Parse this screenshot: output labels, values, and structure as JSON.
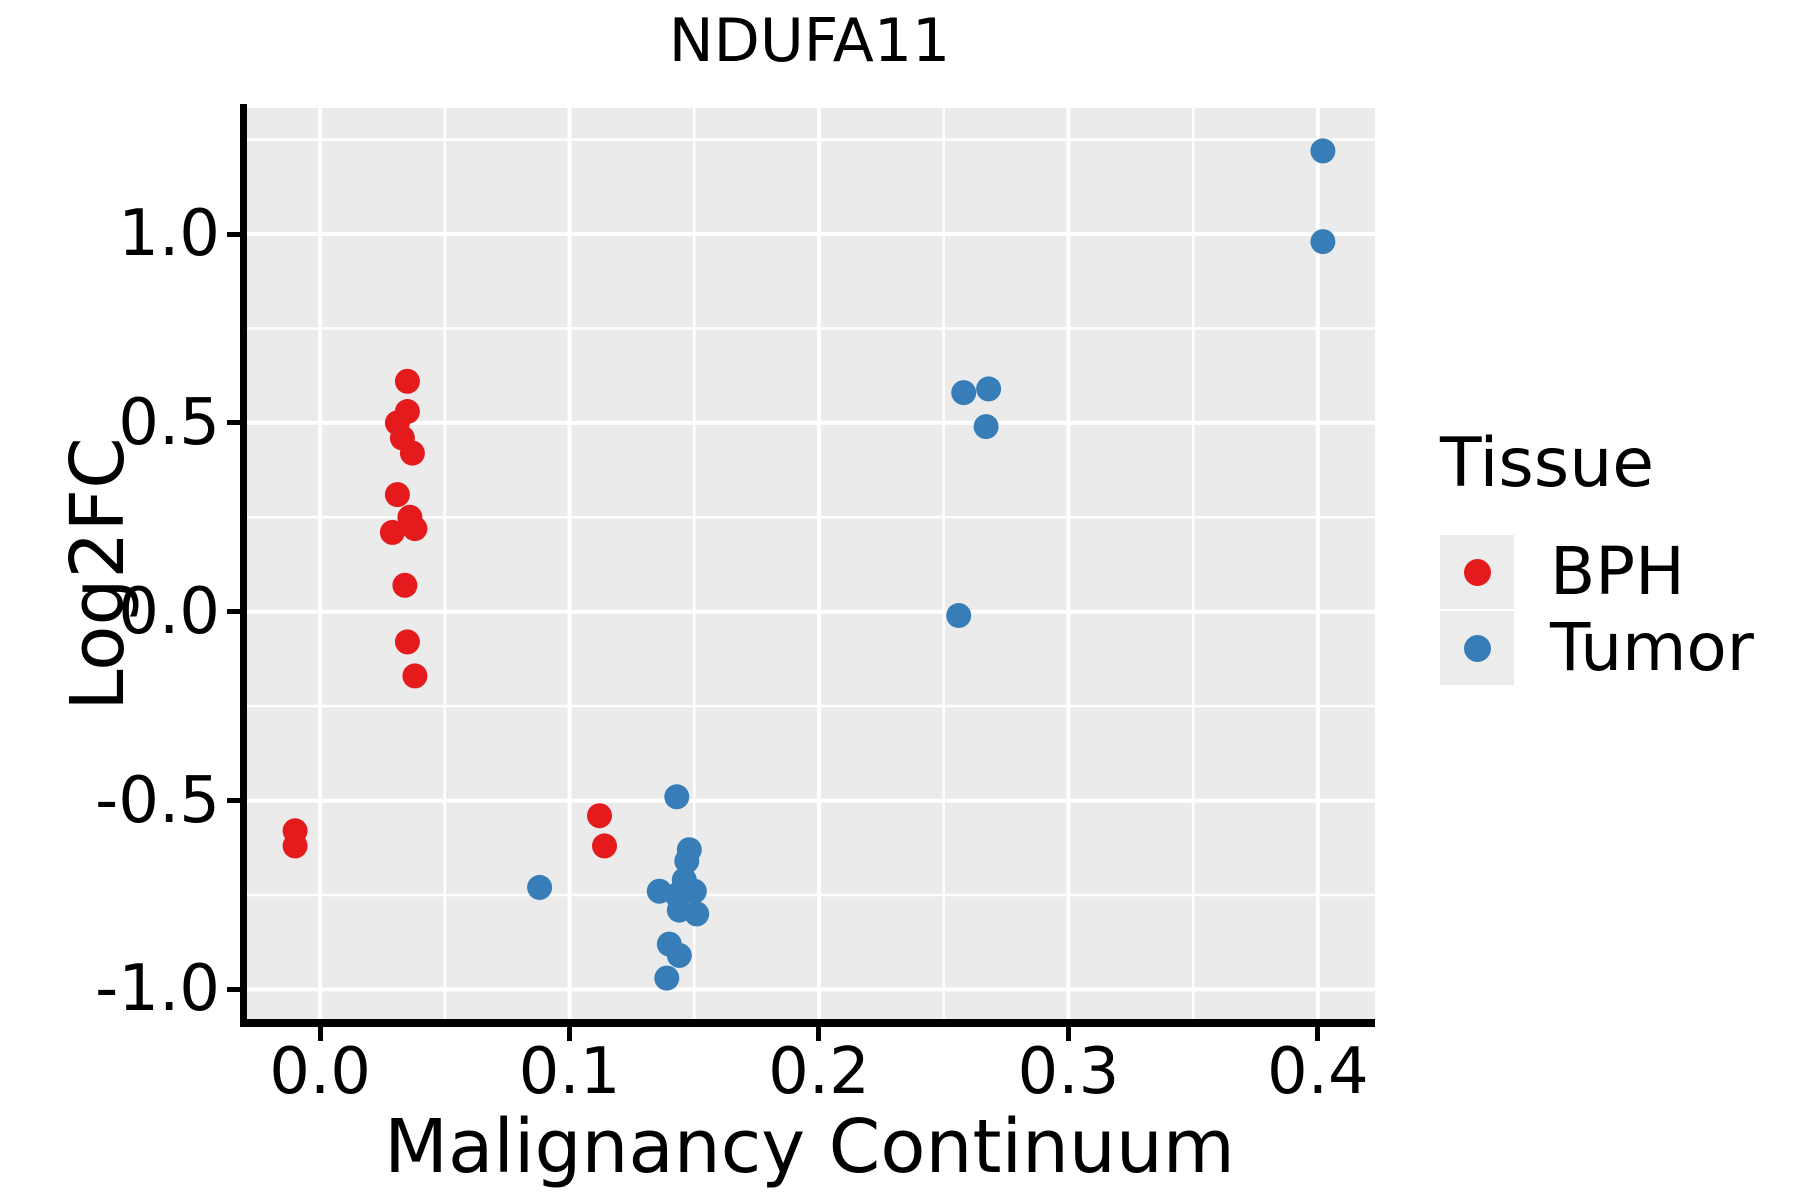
{
  "chart_data": {
    "type": "scatter",
    "title": "NDUFA11",
    "xlabel": "Malignancy Continuum",
    "ylabel": "Log2FC",
    "xlim": [
      -0.0305,
      0.4229
    ],
    "ylim": [
      -1.0889,
      1.3336
    ],
    "x_ticks": {
      "values": [
        0.0,
        0.1,
        0.2,
        0.3,
        0.4
      ],
      "labels": [
        "0.0",
        "0.1",
        "0.2",
        "0.3",
        "0.4"
      ]
    },
    "y_ticks": {
      "values": [
        1.0,
        0.5,
        0.0,
        -0.5,
        -1.0
      ],
      "labels": [
        "1.0",
        "0.5",
        "0.0",
        "-0.5",
        "-1.0"
      ]
    },
    "x_minor": [
      0.05,
      0.15,
      0.25,
      0.35
    ],
    "y_minor": [
      1.25,
      0.75,
      0.25,
      -0.25,
      -0.75
    ],
    "grid": "major and minor white gridlines on gray panel",
    "panel_bg": "#EBEBEB",
    "grid_color": "#FFFFFF",
    "marker_radius_px": 12.5,
    "legend": {
      "title": "Tissue",
      "position": "right",
      "items": [
        {
          "label": "BPH",
          "color": "#E41A1C"
        },
        {
          "label": "Tumor",
          "color": "#377EB8"
        }
      ]
    },
    "series": [
      {
        "name": "BPH",
        "color": "#E41A1C",
        "points": [
          [
            -0.01,
            -0.58
          ],
          [
            -0.01,
            -0.62
          ],
          [
            0.035,
            0.61
          ],
          [
            0.035,
            0.53
          ],
          [
            0.031,
            0.5
          ],
          [
            0.033,
            0.46
          ],
          [
            0.037,
            0.42
          ],
          [
            0.031,
            0.31
          ],
          [
            0.036,
            0.25
          ],
          [
            0.029,
            0.21
          ],
          [
            0.038,
            0.22
          ],
          [
            0.034,
            0.07
          ],
          [
            0.035,
            -0.08
          ],
          [
            0.038,
            -0.17
          ],
          [
            0.112,
            -0.54
          ],
          [
            0.114,
            -0.62
          ]
        ]
      },
      {
        "name": "Tumor",
        "color": "#377EB8",
        "points": [
          [
            0.402,
            1.22
          ],
          [
            0.402,
            0.98
          ],
          [
            0.258,
            0.58
          ],
          [
            0.268,
            0.59
          ],
          [
            0.267,
            0.49
          ],
          [
            0.256,
            -0.01
          ],
          [
            0.088,
            -0.73
          ],
          [
            0.143,
            -0.49
          ],
          [
            0.148,
            -0.63
          ],
          [
            0.147,
            -0.66
          ],
          [
            0.146,
            -0.71
          ],
          [
            0.136,
            -0.74
          ],
          [
            0.143,
            -0.75
          ],
          [
            0.15,
            -0.74
          ],
          [
            0.144,
            -0.79
          ],
          [
            0.151,
            -0.8
          ],
          [
            0.14,
            -0.88
          ],
          [
            0.144,
            -0.91
          ],
          [
            0.139,
            -0.97
          ]
        ]
      }
    ]
  }
}
